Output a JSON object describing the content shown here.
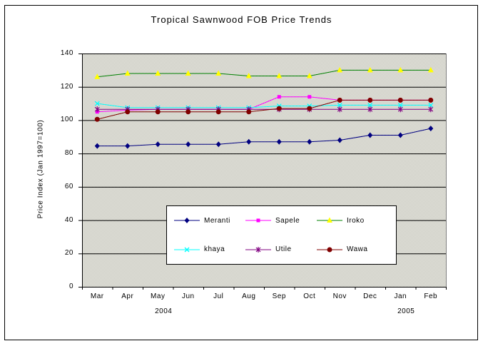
{
  "figure": {
    "background_color": "#ffffff",
    "border_color": "#000000"
  },
  "chart_data": {
    "type": "line",
    "title": "Tropical Sawnwood FOB Price Trends",
    "xlabel": "",
    "ylabel": "Price Index (Jan 1997=100)",
    "categories": [
      "Mar",
      "Apr",
      "May",
      "Jun",
      "Jul",
      "Aug",
      "Sep",
      "Oct",
      "Nov",
      "Dec",
      "Jan",
      "Feb"
    ],
    "x_year_labels": [
      {
        "text": "2004",
        "under_category_index": 2
      },
      {
        "text": "2005",
        "under_category_index": 10
      }
    ],
    "ylim": [
      0,
      140
    ],
    "yticks": [
      0,
      20,
      40,
      60,
      80,
      100,
      120,
      140
    ],
    "grid": true,
    "gridline_color": "#000000",
    "plot_bg_base": "#e9e9e3",
    "plot_bg_dot": "#c6c6bc",
    "plot_border_right_color": "#808080",
    "legend_position": "inside-bottom-center",
    "legend_order": [
      [
        "Meranti",
        "Sapele",
        "Iroko"
      ],
      [
        "khaya",
        "Utile",
        "Wawa"
      ]
    ],
    "series": [
      {
        "name": "Meranti",
        "line_color": "#000080",
        "marker": "diamond",
        "marker_color": "#000080",
        "values": [
          84.5,
          84.5,
          85.5,
          85.5,
          85.5,
          87,
          87,
          87,
          88,
          91,
          91,
          95
        ]
      },
      {
        "name": "Sapele",
        "line_color": "#ff00ff",
        "marker": "square",
        "marker_color": "#ff00ff",
        "values": [
          105,
          106,
          106.5,
          106.5,
          106.5,
          106.5,
          114,
          114,
          112,
          112,
          112,
          112
        ]
      },
      {
        "name": "Iroko",
        "line_color": "#008000",
        "marker": "triangle",
        "marker_color": "#ffff00",
        "values": [
          126,
          128,
          128,
          128,
          128,
          126.5,
          126.5,
          126.5,
          130,
          130,
          130,
          130
        ]
      },
      {
        "name": "khaya",
        "line_color": "#00ffff",
        "marker": "x",
        "marker_color": "#00ffff",
        "values": [
          110,
          107.5,
          107.5,
          107.5,
          107.5,
          107.5,
          108.5,
          108.5,
          109,
          109,
          109,
          109
        ]
      },
      {
        "name": "Utile",
        "line_color": "#800080",
        "marker": "asterisk",
        "marker_color": "#800080",
        "values": [
          106.5,
          106.5,
          106.5,
          106.5,
          106.5,
          106.5,
          106.5,
          106.5,
          106.5,
          106.5,
          106.5,
          106.5
        ]
      },
      {
        "name": "Wawa",
        "line_color": "#800000",
        "marker": "circle",
        "marker_color": "#800000",
        "values": [
          100.5,
          105,
          105,
          105,
          105,
          105,
          107,
          107,
          112,
          112,
          112,
          112
        ]
      }
    ]
  }
}
